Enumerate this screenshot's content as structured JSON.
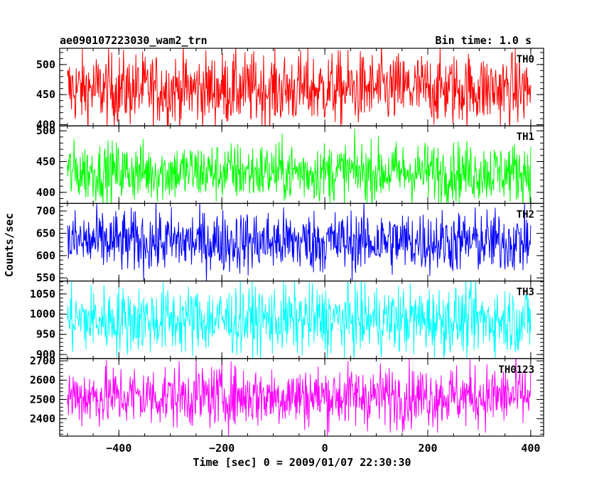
{
  "header": {
    "obs_id": "ae090107223030_wam2_trn",
    "bin_time": "Bin time: 1.0 s"
  },
  "axes": {
    "ylabel": "Counts/sec",
    "xlabel": "Time [sec] 0 = 2009/01/07 22:30:30"
  },
  "chart_data": {
    "type": "line",
    "title": "ae090107223030_wam2_trn",
    "subtitle": "Bin time: 1.0 s",
    "xlabel": "Time [sec] 0 = 2009/01/07 22:30:30",
    "ylabel": "Counts/sec",
    "xlim": [
      -515,
      425
    ],
    "x_range": [
      -500,
      400
    ],
    "bin_time_s": 1.0,
    "xticks": [
      -400,
      -200,
      0,
      200,
      400
    ],
    "xtick_labels": [
      "−400",
      "−200",
      "0",
      "200",
      "400"
    ],
    "panels": [
      {
        "name": "TH0",
        "color": "#ff0000",
        "ylim": [
          398,
          527
        ],
        "yticks": [
          400,
          450,
          500
        ],
        "ytick_labels": [
          "400",
          "450",
          "500"
        ],
        "mean": 459,
        "spread": 30
      },
      {
        "name": "TH1",
        "color": "#00ff00",
        "ylim": [
          382,
          508
        ],
        "yticks": [
          400,
          450,
          500
        ],
        "ytick_labels": [
          "400",
          "450",
          "500"
        ],
        "mean": 433,
        "spread": 24
      },
      {
        "name": "TH2",
        "color": "#0000ff",
        "ylim": [
          543,
          717
        ],
        "yticks": [
          550,
          600,
          650,
          700
        ],
        "ytick_labels": [
          "550",
          "600",
          "650",
          "700"
        ],
        "mean": 631,
        "spread": 35
      },
      {
        "name": "TH3",
        "color": "#00ffff",
        "ylim": [
          890,
          1082
        ],
        "yticks": [
          900,
          950,
          1000,
          1050
        ],
        "ytick_labels": [
          "900",
          "950",
          "1000",
          "1050"
        ],
        "mean": 986,
        "spread": 42
      },
      {
        "name": "TH0123",
        "color": "#ff00ff",
        "ylim": [
          2310,
          2712
        ],
        "yticks": [
          2400,
          2500,
          2600,
          2700
        ],
        "ytick_labels": [
          "2400",
          "2500",
          "2600",
          "2700"
        ],
        "mean": 2517,
        "spread": 80
      }
    ]
  }
}
